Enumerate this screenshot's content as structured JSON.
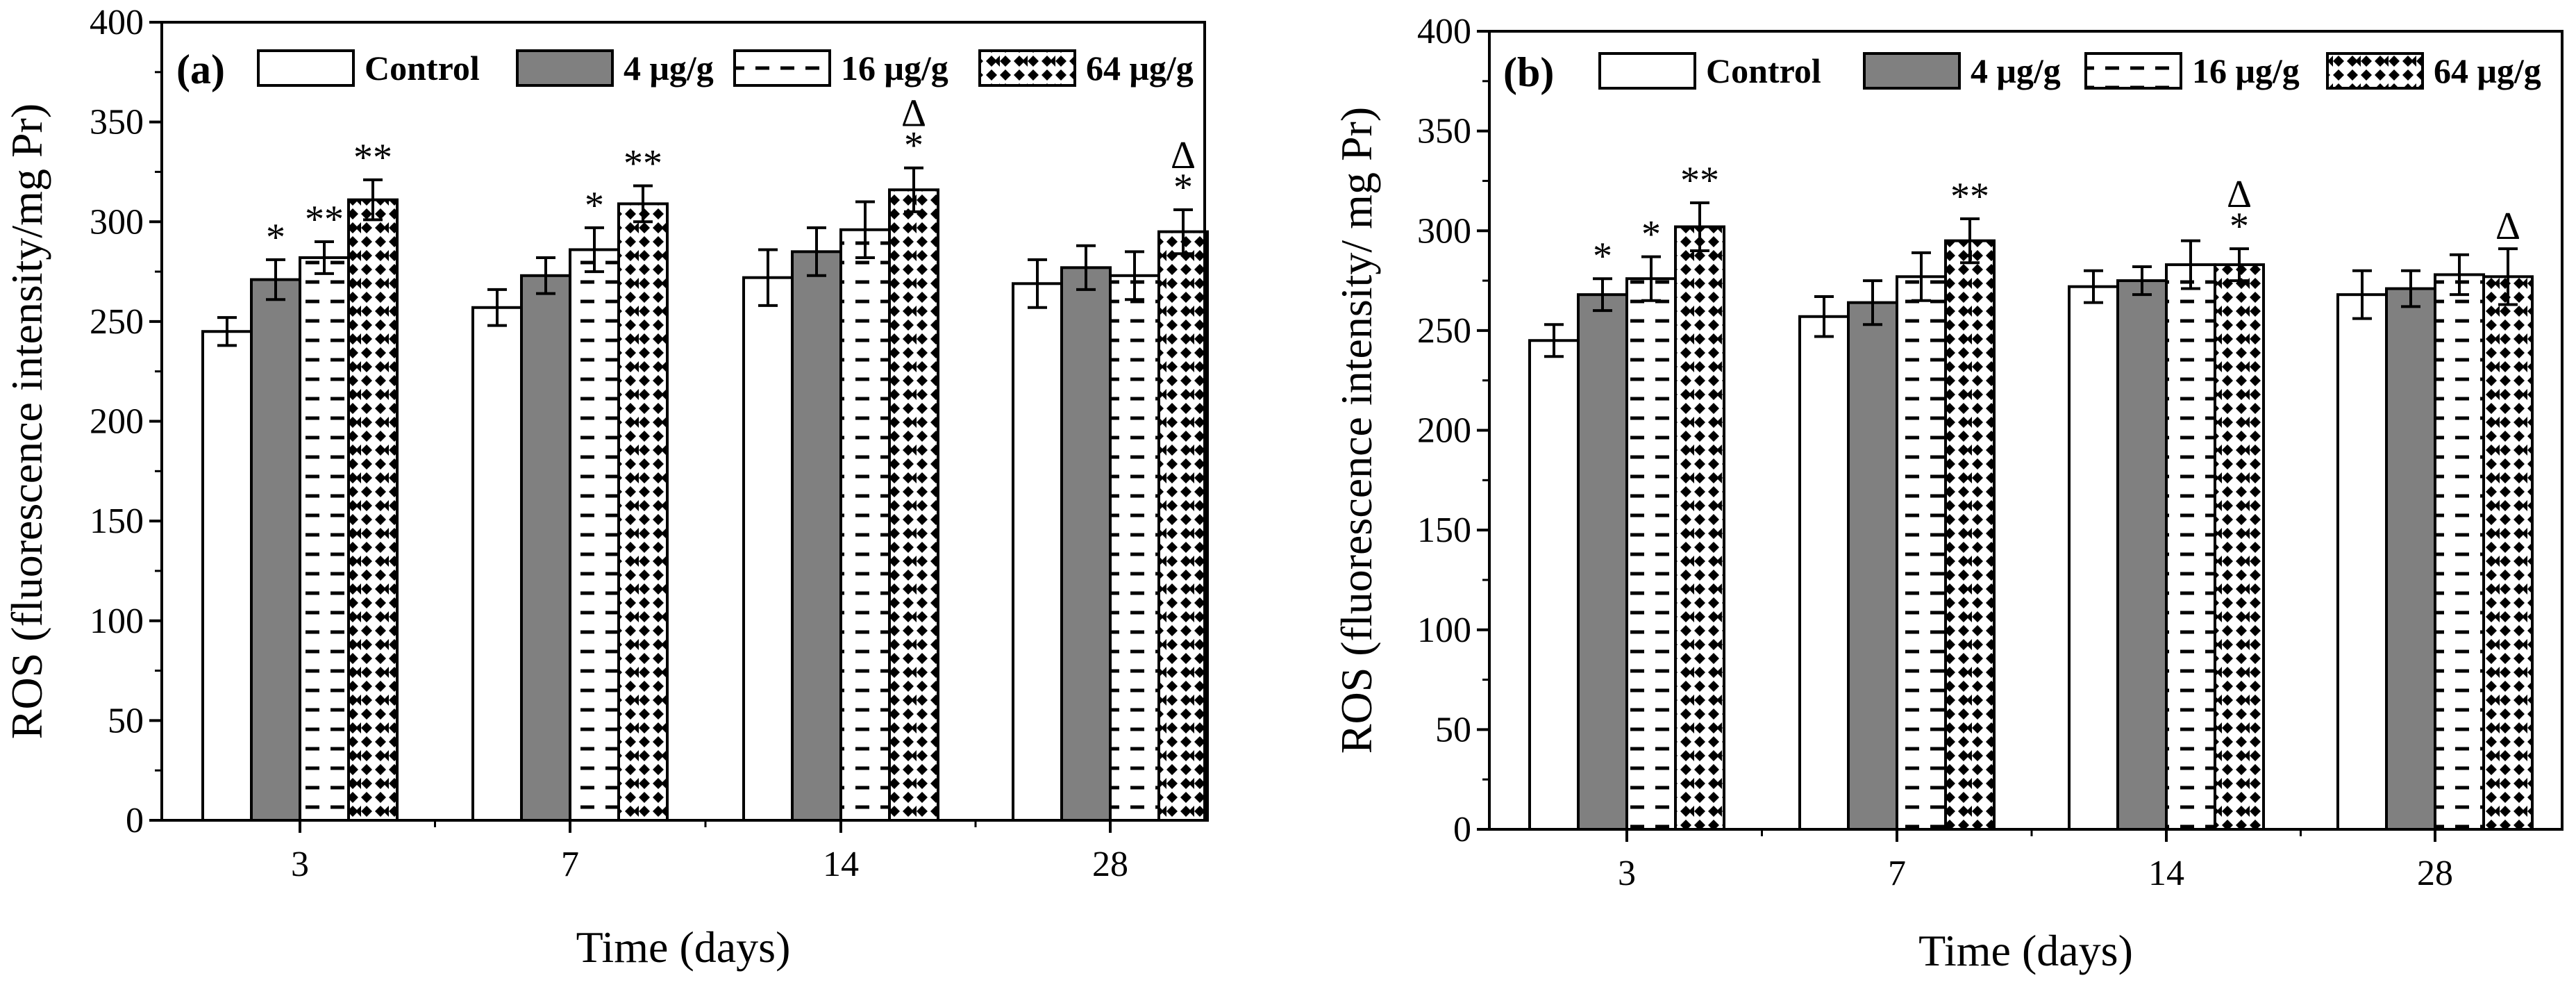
{
  "chart_data": [
    {
      "type": "bar",
      "panel": "(a)",
      "xlabel": "Time (days)",
      "ylabel": "ROS (fluorescence intensity/mg Pr)",
      "ylim": [
        0,
        400
      ],
      "yticks": [
        0,
        50,
        100,
        150,
        200,
        250,
        300,
        350,
        400
      ],
      "categories": [
        "3",
        "7",
        "14",
        "28"
      ],
      "legend_position": "top",
      "series": [
        {
          "name": "Control",
          "pattern": "solid-white",
          "values": [
            245,
            257,
            272,
            269
          ],
          "errors": [
            7,
            9,
            14,
            12
          ]
        },
        {
          "name": "4 μg/g",
          "pattern": "solid-gray",
          "values": [
            271,
            273,
            285,
            277
          ],
          "errors": [
            10,
            9,
            12,
            11
          ]
        },
        {
          "name": "16 μg/g",
          "pattern": "dashes",
          "values": [
            282,
            286,
            296,
            273
          ],
          "errors": [
            8,
            11,
            14,
            12
          ]
        },
        {
          "name": "64 μg/g",
          "pattern": "dots",
          "values": [
            311,
            309,
            316,
            295
          ],
          "errors": [
            10,
            9,
            11,
            11
          ]
        }
      ],
      "annotations": [
        {
          "category": 0,
          "series": 1,
          "marks": [
            "*"
          ]
        },
        {
          "category": 0,
          "series": 2,
          "marks": [
            "**"
          ]
        },
        {
          "category": 0,
          "series": 3,
          "marks": [
            "**"
          ]
        },
        {
          "category": 1,
          "series": 2,
          "marks": [
            "*"
          ]
        },
        {
          "category": 1,
          "series": 3,
          "marks": [
            "**"
          ]
        },
        {
          "category": 2,
          "series": 3,
          "marks": [
            "Δ",
            "*"
          ]
        },
        {
          "category": 3,
          "series": 3,
          "marks": [
            "Δ",
            "*"
          ]
        }
      ]
    },
    {
      "type": "bar",
      "panel": "(b)",
      "xlabel": "Time (days)",
      "ylabel": "ROS (fluorescence intensity/ mg Pr)",
      "ylim": [
        0,
        400
      ],
      "yticks": [
        0,
        50,
        100,
        150,
        200,
        250,
        300,
        350,
        400
      ],
      "categories": [
        "3",
        "7",
        "14",
        "28"
      ],
      "legend_position": "top",
      "series": [
        {
          "name": "Control",
          "pattern": "solid-white",
          "values": [
            245,
            257,
            272,
            268
          ],
          "errors": [
            8,
            10,
            8,
            12
          ]
        },
        {
          "name": "4 μg/g",
          "pattern": "solid-gray",
          "values": [
            268,
            264,
            275,
            271
          ],
          "errors": [
            8,
            11,
            7,
            9
          ]
        },
        {
          "name": "16 μg/g",
          "pattern": "dashes",
          "values": [
            276,
            277,
            283,
            278
          ],
          "errors": [
            11,
            12,
            12,
            10
          ]
        },
        {
          "name": "64 μg/g",
          "pattern": "dots",
          "values": [
            302,
            295,
            283,
            277
          ],
          "errors": [
            12,
            11,
            8,
            14
          ]
        }
      ],
      "annotations": [
        {
          "category": 0,
          "series": 1,
          "marks": [
            "*"
          ]
        },
        {
          "category": 0,
          "series": 2,
          "marks": [
            "*"
          ]
        },
        {
          "category": 0,
          "series": 3,
          "marks": [
            "**"
          ]
        },
        {
          "category": 1,
          "series": 3,
          "marks": [
            "**"
          ]
        },
        {
          "category": 2,
          "series": 3,
          "marks": [
            "Δ",
            "*"
          ]
        },
        {
          "category": 3,
          "series": 3,
          "marks": [
            "Δ"
          ]
        }
      ]
    }
  ]
}
